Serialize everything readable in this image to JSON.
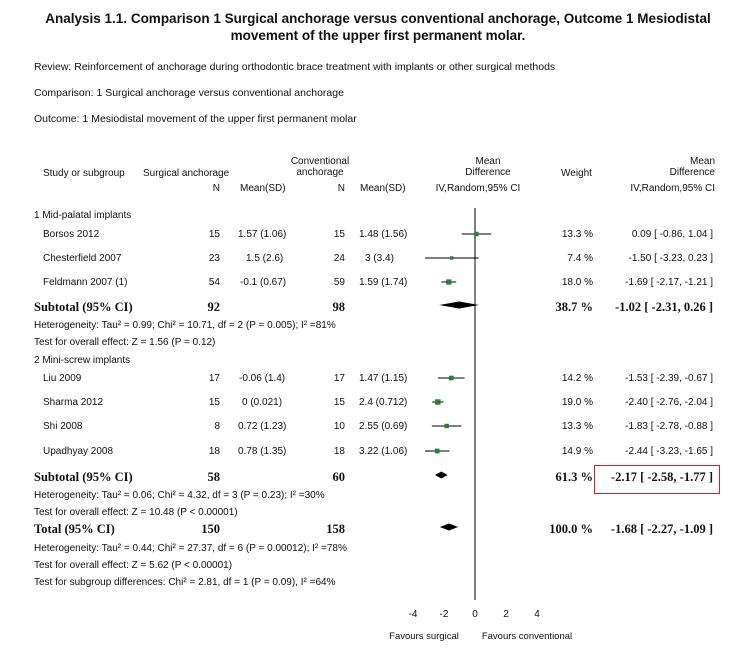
{
  "title": {
    "line1": "Analysis 1.1.   Comparison 1 Surgical anchorage versus conventional anchorage, Outcome 1 Mesiodistal",
    "line2": "movement of the upper first permanent molar."
  },
  "meta": {
    "review": "Review:    Reinforcement of anchorage during orthodontic brace treatment with implants or other surgical methods",
    "comparison": "Comparison:    1 Surgical anchorage versus conventional anchorage",
    "outcome": "Outcome:    1 Mesiodistal movement of the upper first permanent molar"
  },
  "headers": {
    "study": "Study or subgroup",
    "surgical": "Surgical anchorage",
    "conv1": "Conventional",
    "conv2": "anchorage",
    "n1": "N",
    "mean1": "Mean(SD)",
    "n2": "N",
    "mean2": "Mean(SD)",
    "md1": "Mean",
    "md2": "Difference",
    "md3": "IV,Random,95% CI",
    "weight": "Weight",
    "md4": "Mean",
    "md5": "Difference",
    "md6": "IV,Random,95% CI"
  },
  "groups": [
    {
      "label": "1 Mid-palatal implants",
      "studies": [
        {
          "name": "Borsos 2012",
          "n1": "15",
          "mean1": "1.57 (1.06)",
          "n2": "15",
          "mean2": "1.48 (1.56)",
          "weight": "13.3 %",
          "ci": "0.09 [ -0.86, 1.04 ]"
        },
        {
          "name": "Chesterfield 2007",
          "n1": "23",
          "mean1": "1.5 (2.6)",
          "n2": "24",
          "mean2": "3 (3.4)",
          "weight": "7.4 %",
          "ci": "-1.50 [ -3.23, 0.23 ]"
        },
        {
          "name": "Feldmann 2007 (1)",
          "n1": "54",
          "mean1": "-0.1 (0.67)",
          "n2": "59",
          "mean2": "1.59 (1.74)",
          "weight": "18.0 %",
          "ci": "-1.69 [ -2.17, -1.21 ]"
        }
      ],
      "subtotal": {
        "label": "Subtotal (95% CI)",
        "n1": "92",
        "n2": "98",
        "weight": "38.7 %",
        "ci": "-1.02 [ -2.31, 0.26 ]"
      },
      "heterogeneity": "Heterogeneity: Tau² = 0.99; Chi² = 10.71, df = 2 (P = 0.005); I² =81%",
      "effect": "Test for overall effect: Z = 1.56 (P = 0.12)"
    },
    {
      "label": "2 Mini-screw implants",
      "studies": [
        {
          "name": "Liu 2009",
          "n1": "17",
          "mean1": "-0.06 (1.4)",
          "n2": "17",
          "mean2": "1.47 (1.15)",
          "weight": "14.2 %",
          "ci": "-1.53 [ -2.39, -0.67 ]"
        },
        {
          "name": "Sharma 2012",
          "n1": "15",
          "mean1": "0 (0.021)",
          "n2": "15",
          "mean2": "2.4 (0.712)",
          "weight": "19.0 %",
          "ci": "-2.40 [ -2.76, -2.04 ]"
        },
        {
          "name": "Shi 2008",
          "n1": "8",
          "mean1": "0.72 (1.23)",
          "n2": "10",
          "mean2": "2.55 (0.69)",
          "weight": "13.3 %",
          "ci": "-1.83 [ -2.78, -0.88 ]"
        },
        {
          "name": "Upadhyay 2008",
          "n1": "18",
          "mean1": "0.78 (1.35)",
          "n2": "18",
          "mean2": "3.22 (1.06)",
          "weight": "14.9 %",
          "ci": "-2.44 [ -3.23, -1.65 ]"
        }
      ],
      "subtotal": {
        "label": "Subtotal (95% CI)",
        "n1": "58",
        "n2": "60",
        "weight": "61.3 %",
        "ci": "-2.17 [ -2.58, -1.77 ]"
      },
      "heterogeneity": "Heterogeneity: Tau² = 0.06; Chi² = 4.32, df = 3 (P = 0.23); I² =30%",
      "effect": "Test for overall effect: Z = 10.48 (P < 0.00001)"
    }
  ],
  "total": {
    "label": "Total (95% CI)",
    "n1": "150",
    "n2": "158",
    "weight": "100.0 %",
    "ci": "-1.68 [ -2.27, -1.09 ]"
  },
  "total_heterogeneity": "Heterogeneity: Tau² = 0.44; Chi² = 27.37, df = 6 (P = 0.00012); I² =78%",
  "total_effect": "Test for overall effect: Z = 5.62 (P < 0.00001)",
  "subgroup_diff": "Test for subgroup differences: Chi² = 2.81, df = 1 (P = 0.09), I² =64%",
  "axis": {
    "ticks": [
      "-4",
      "-2",
      "0",
      "2",
      "4"
    ],
    "left_label": "Favours surgical",
    "right_label": "Favours conventional"
  },
  "colors": {
    "marker": "#2e7d32",
    "highlight": "#d21f26"
  },
  "chart_data": {
    "type": "forest",
    "xlim": [
      -4,
      4
    ],
    "studies": [
      {
        "name": "Borsos 2012",
        "md": 0.09,
        "lo": -0.86,
        "hi": 1.04,
        "weight": 13.3
      },
      {
        "name": "Chesterfield 2007",
        "md": -1.5,
        "lo": -3.23,
        "hi": 0.23,
        "weight": 7.4
      },
      {
        "name": "Feldmann 2007 (1)",
        "md": -1.69,
        "lo": -2.17,
        "hi": -1.21,
        "weight": 18.0
      },
      {
        "name": "Liu 2009",
        "md": -1.53,
        "lo": -2.39,
        "hi": -0.67,
        "weight": 14.2
      },
      {
        "name": "Sharma 2012",
        "md": -2.4,
        "lo": -2.76,
        "hi": -2.04,
        "weight": 19.0
      },
      {
        "name": "Shi 2008",
        "md": -1.83,
        "lo": -2.78,
        "hi": -0.88,
        "weight": 13.3
      },
      {
        "name": "Upadhyay 2008",
        "md": -2.44,
        "lo": -3.23,
        "hi": -1.65,
        "weight": 14.9
      }
    ],
    "summaries": [
      {
        "name": "Subtotal 1",
        "md": -1.02,
        "lo": -2.31,
        "hi": 0.26
      },
      {
        "name": "Subtotal 2",
        "md": -2.17,
        "lo": -2.58,
        "hi": -1.77
      },
      {
        "name": "Total",
        "md": -1.68,
        "lo": -2.27,
        "hi": -1.09
      }
    ]
  }
}
